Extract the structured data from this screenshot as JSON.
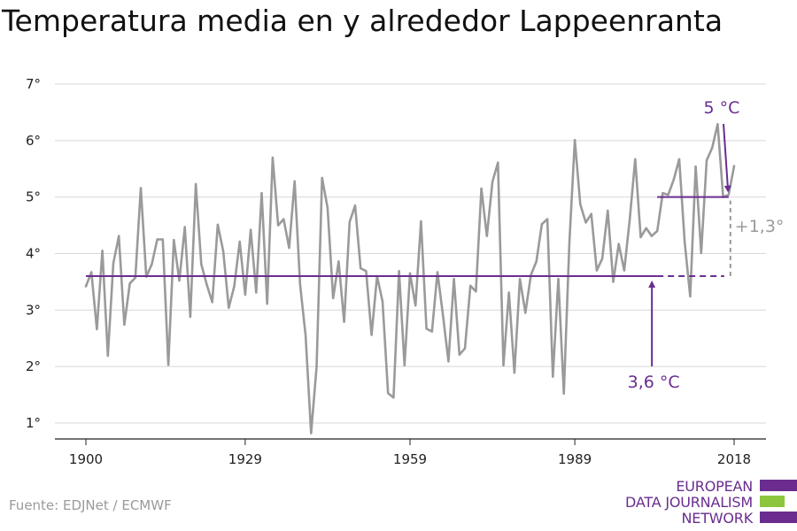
{
  "title": "Temperatura media en y alrededor Lappeenranta",
  "source": "Fuente: EDJNet / ECMWF",
  "logo": {
    "lines": [
      "EUROPEAN",
      "DATA JOURNALISM",
      "NETWORK"
    ],
    "colors": [
      "#6a2d8f",
      "#8cc63f",
      "#6a2d8f"
    ]
  },
  "colors": {
    "series": "#9a9a9a",
    "accent": "#6a2d8f",
    "difference": "#9a9a9a",
    "grid": "#d8d8d8",
    "axis": "#222222"
  },
  "chart_data": {
    "type": "line",
    "title": "Temperatura media en y alrededor Lappeenranta",
    "xlabel": "",
    "ylabel": "",
    "xlim": [
      1900,
      2018
    ],
    "ylim": [
      1,
      7
    ],
    "x_ticks": [
      1900,
      1929,
      1959,
      1989,
      2018
    ],
    "y_ticks": [
      1,
      2,
      3,
      4,
      5,
      6,
      7
    ],
    "y_tick_suffix": "°",
    "grid": "horizontal",
    "series": [
      {
        "x": [
          1900,
          1901,
          1902,
          1903,
          1904,
          1905,
          1906,
          1907,
          1908,
          1909,
          1910,
          1911,
          1912,
          1913,
          1914,
          1915,
          1916,
          1917,
          1918,
          1919,
          1920,
          1921,
          1922,
          1923,
          1924,
          1925,
          1926,
          1927,
          1928,
          1929,
          1930,
          1931,
          1932,
          1933,
          1934,
          1935,
          1936,
          1937,
          1938,
          1939,
          1940,
          1941,
          1942,
          1943,
          1944,
          1945,
          1946,
          1947,
          1948,
          1949,
          1950,
          1951,
          1952,
          1953,
          1954,
          1955,
          1956,
          1957,
          1958,
          1959,
          1960,
          1961,
          1962,
          1963,
          1964,
          1965,
          1966,
          1967,
          1968,
          1969,
          1970,
          1971,
          1972,
          1973,
          1974,
          1975,
          1976,
          1977,
          1978,
          1979,
          1980,
          1981,
          1982,
          1983,
          1984,
          1985,
          1986,
          1987,
          1988,
          1989,
          1990,
          1991,
          1992,
          1993,
          1994,
          1995,
          1996,
          1997,
          1998,
          1999,
          2000,
          2001,
          2002,
          2003,
          2004,
          2005,
          2006,
          2007,
          2008,
          2009,
          2010,
          2011,
          2012,
          2013,
          2014,
          2015,
          2016,
          2017,
          2018
        ],
        "values": [
          3.42,
          3.67,
          2.66,
          4.05,
          2.19,
          3.83,
          4.31,
          2.74,
          3.47,
          3.57,
          5.16,
          3.59,
          3.81,
          4.25,
          4.25,
          2.03,
          4.24,
          3.52,
          4.47,
          2.88,
          5.23,
          3.81,
          3.45,
          3.14,
          4.51,
          4.04,
          3.04,
          3.42,
          4.21,
          3.27,
          4.42,
          3.31,
          5.07,
          3.11,
          5.7,
          4.5,
          4.61,
          4.1,
          5.28,
          3.45,
          2.55,
          0.82,
          1.99,
          5.34,
          4.81,
          3.21,
          3.86,
          2.79,
          4.56,
          4.85,
          3.74,
          3.69,
          2.56,
          3.6,
          3.15,
          1.53,
          1.45,
          3.69,
          2.02,
          3.65,
          3.08,
          4.57,
          2.67,
          2.62,
          3.67,
          2.91,
          2.09,
          3.55,
          2.21,
          2.32,
          3.43,
          3.33,
          5.15,
          4.31,
          5.27,
          5.61,
          2.02,
          3.31,
          1.89,
          3.55,
          2.95,
          3.62,
          3.86,
          4.52,
          4.61,
          1.82,
          3.55,
          1.52,
          4.17,
          6.01,
          4.87,
          4.55,
          4.7,
          3.7,
          3.91,
          4.76,
          3.5,
          4.17,
          3.7,
          4.6,
          5.67,
          4.29,
          4.45,
          4.31,
          4.4,
          5.07,
          5.04,
          5.31,
          5.67,
          4.2,
          3.24,
          5.54,
          4.01,
          5.65,
          5.87,
          6.29,
          5.0,
          5.04,
          5.55
        ]
      }
    ],
    "reference_lines": [
      {
        "label": "3,6 °C",
        "value": 3.6,
        "x_start": 1900,
        "x_end": 2004,
        "dashed_to": 2017
      },
      {
        "label": "5 °C",
        "value": 5.0,
        "x_start": 2004,
        "x_end": 2017
      }
    ],
    "difference_label": "+1,3°"
  }
}
